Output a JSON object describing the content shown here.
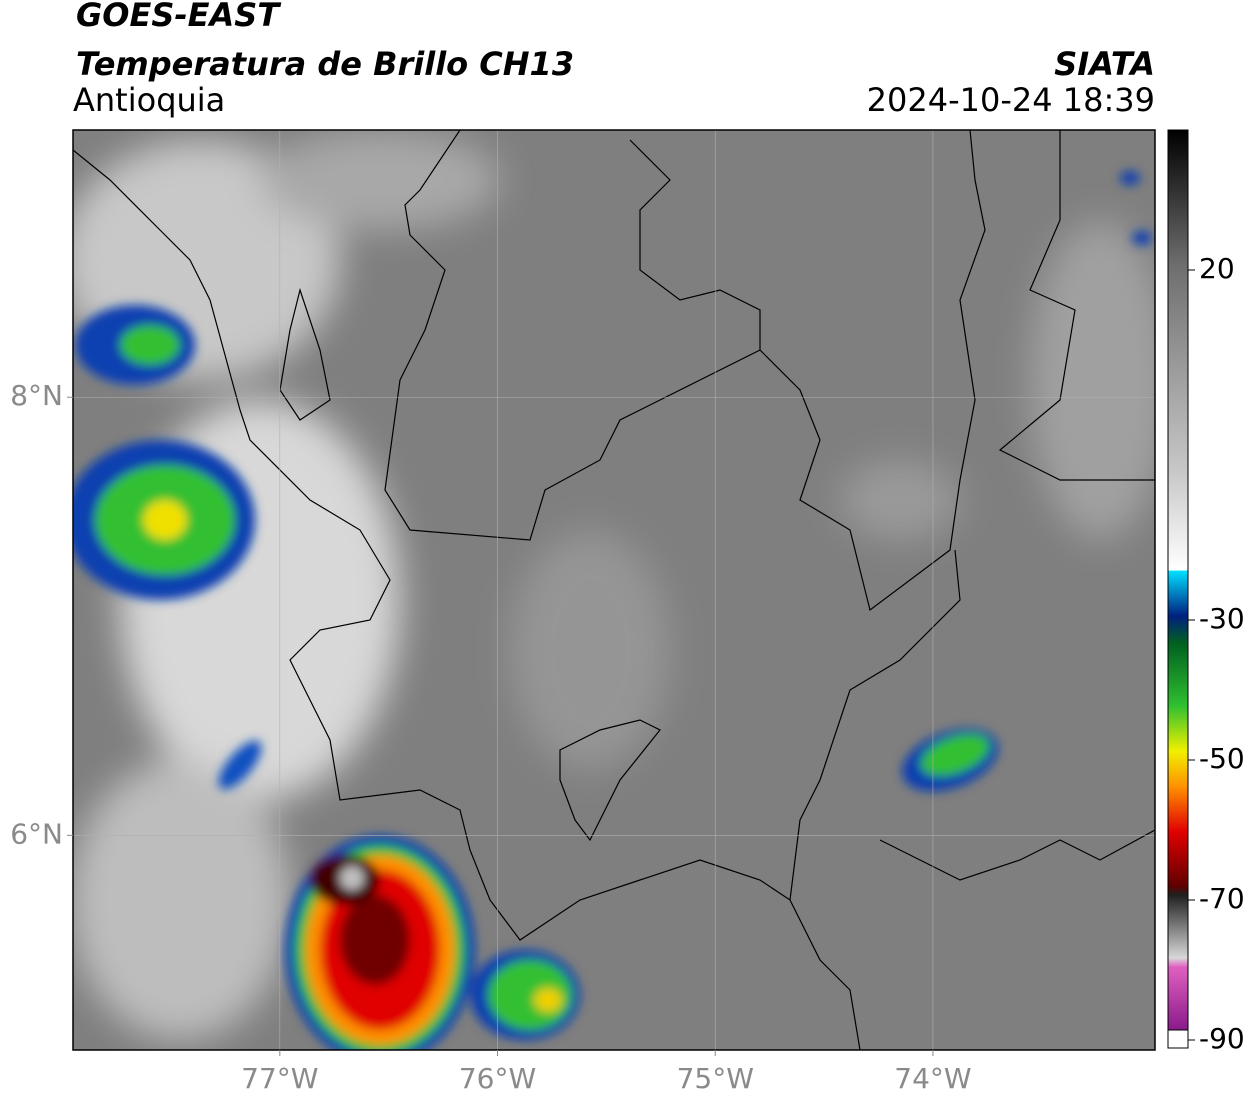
{
  "header": {
    "title": "GOES-EAST",
    "subtitle": "Temperatura de Brillo CH13",
    "region": "Antioquia",
    "source": "SIATA",
    "datetime": "2024-10-24 18:39"
  },
  "map": {
    "lonlim": [
      -77.95,
      -72.98
    ],
    "latlim": [
      5.02,
      9.22
    ],
    "lon_ticks": [
      {
        "value": -77,
        "label": "77°W"
      },
      {
        "value": -76,
        "label": "76°W"
      },
      {
        "value": -75,
        "label": "75°W"
      },
      {
        "value": -74,
        "label": "74°W"
      }
    ],
    "lat_ticks": [
      {
        "value": 8,
        "label": "8°N"
      },
      {
        "value": 6,
        "label": "6°N"
      }
    ]
  },
  "colorbar": {
    "lim": [
      -90,
      40
    ],
    "ticks": [
      20,
      -30,
      -50,
      -70,
      -90
    ]
  }
}
